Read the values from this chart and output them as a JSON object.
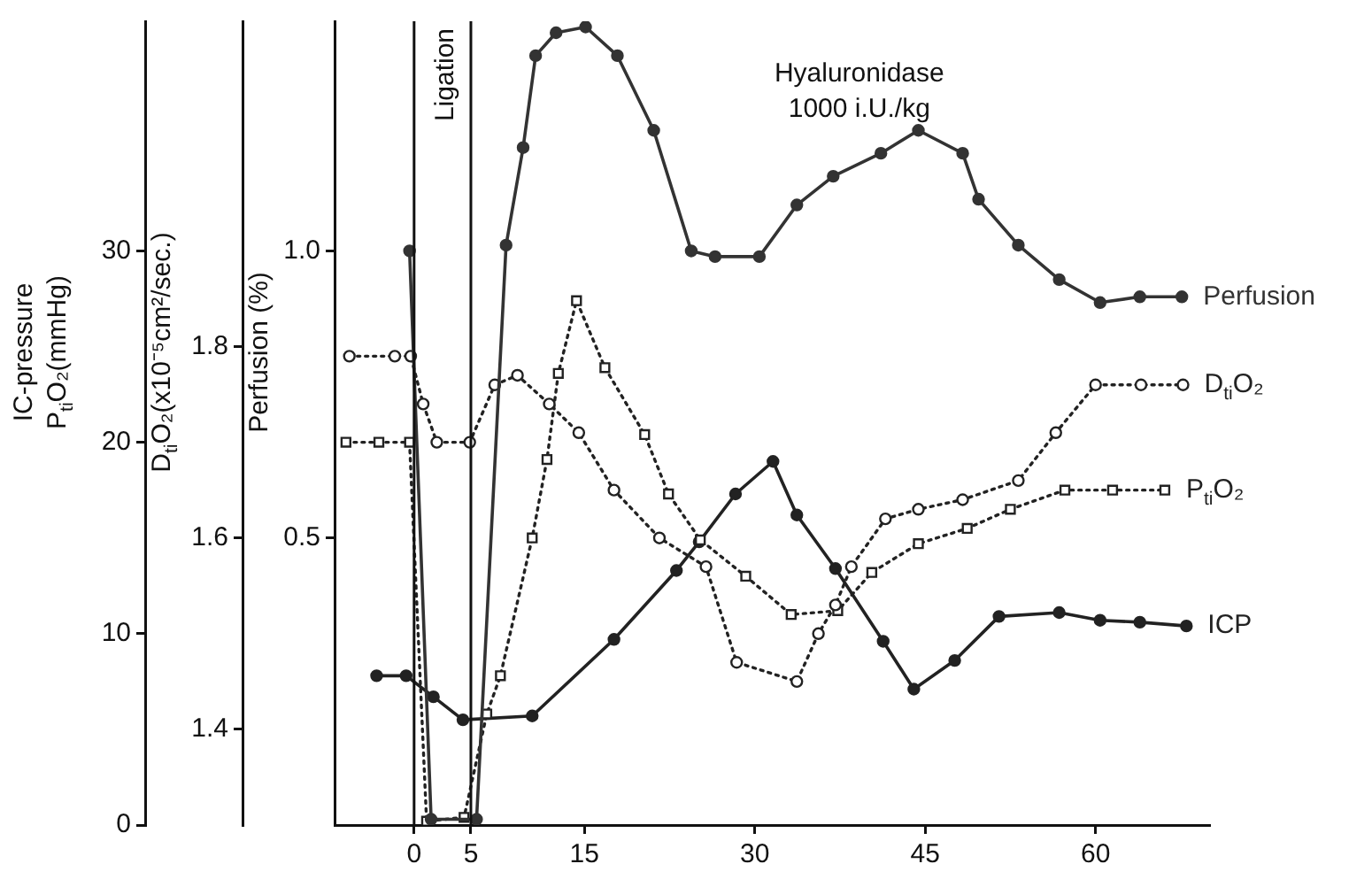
{
  "chart_data": {
    "type": "line",
    "xlim": [
      -7,
      70
    ],
    "xticks": [
      0,
      5,
      15,
      30,
      45,
      60
    ],
    "ylim": [
      0,
      42
    ],
    "yticks": [
      0,
      10,
      20,
      30
    ],
    "y2lim": [
      1.3,
      2.14
    ],
    "y2ticks": [
      1.4,
      1.6,
      1.8
    ],
    "y3lim": [
      0,
      1.4
    ],
    "y3ticks": [
      {
        "value": 0.5,
        "label": "0.5"
      },
      {
        "value": 1,
        "label": "1.0"
      }
    ],
    "ylabel": "IC-pressure\nP$_{ti}$O₂(mmHg)",
    "y2label": "D$_{ti}$O₂(x10⁻⁵cm²/sec.)",
    "y3label": "Perfusion (%)",
    "annotations": [
      "Hyaluronidase\n1000 i.U./kg"
    ],
    "ref_lines": [
      {
        "axis": "x",
        "value": 0,
        "label": "Ligation"
      },
      {
        "axis": "x",
        "value": 5,
        "label": null
      }
    ],
    "legend": false,
    "series": [
      {
        "name": "Perfusion",
        "color": "#333333",
        "axis": "y3",
        "marker": "circle",
        "line_style": "solid",
        "x": [
          -0.4,
          1.5,
          5.5,
          8.1,
          9.6,
          10.7,
          12.5,
          15.1,
          17.9,
          21.1,
          24.4,
          26.5,
          30.4,
          33.7,
          36.9,
          41.1,
          44.4,
          48.3,
          49.7,
          53.2,
          56.8,
          60.4,
          63.9,
          67.6
        ],
        "values": [
          1.0,
          0.01,
          0.01,
          1.01,
          1.18,
          1.34,
          1.38,
          1.39,
          1.34,
          1.21,
          1.0,
          0.99,
          0.99,
          1.08,
          1.13,
          1.17,
          1.21,
          1.17,
          1.09,
          1.01,
          0.95,
          0.91,
          0.92,
          0.92
        ]
      },
      {
        "name": "D$_{ti}$O₂",
        "color": "#222222",
        "axis": "y2",
        "marker": "circle",
        "line_style": "dotted",
        "x": [
          -5.7,
          -1.7,
          -0.3,
          0.8,
          2.0,
          4.9,
          7.1,
          9.1,
          11.9,
          14.5,
          17.6,
          21.6,
          25.7,
          28.4,
          33.7,
          35.6,
          37.1,
          38.5,
          41.5,
          44.4,
          48.3,
          53.2,
          56.5,
          60.0,
          64.0,
          67.7
        ],
        "values": [
          1.79,
          1.79,
          1.79,
          1.74,
          1.7,
          1.7,
          1.76,
          1.77,
          1.74,
          1.71,
          1.65,
          1.6,
          1.57,
          1.47,
          1.45,
          1.5,
          1.53,
          1.57,
          1.62,
          1.63,
          1.64,
          1.66,
          1.71,
          1.76,
          1.76,
          1.76
        ]
      },
      {
        "name": "P$_{ti}$O₂",
        "color": "#222222",
        "marker": "square",
        "line_style": "dotted",
        "x": [
          -6.0,
          -3.1,
          -0.4,
          1.1,
          4.4,
          6.4,
          7.6,
          10.4,
          11.7,
          12.7,
          14.3,
          16.8,
          20.3,
          22.4,
          25.2,
          29.2,
          33.2,
          37.3,
          40.3,
          44.4,
          48.7,
          52.5,
          57.3,
          61.5,
          66.1
        ],
        "values": [
          20,
          20,
          20,
          0.2,
          0.4,
          5.8,
          7.8,
          15,
          19.1,
          23.6,
          27.4,
          23.9,
          20.4,
          17.3,
          14.9,
          13,
          11,
          11.2,
          13.2,
          14.7,
          15.5,
          16.5,
          17.5,
          17.5,
          17.5
        ]
      },
      {
        "name": "ICP",
        "color": "#222222",
        "marker": "circle",
        "line_style": "solid",
        "x": [
          -3.3,
          -0.7,
          1.7,
          4.3,
          10.4,
          17.6,
          23.1,
          25.1,
          28.3,
          31.6,
          33.7,
          37.1,
          41.3,
          44.0,
          47.6,
          51.5,
          56.8,
          60.4,
          63.9,
          68.0
        ],
        "values": [
          7.8,
          7.8,
          6.7,
          5.5,
          5.7,
          9.7,
          13.3,
          14.8,
          17.3,
          19.0,
          16.2,
          13.4,
          9.6,
          7.1,
          8.6,
          10.9,
          11.1,
          10.7,
          10.6,
          10.4
        ]
      }
    ]
  }
}
